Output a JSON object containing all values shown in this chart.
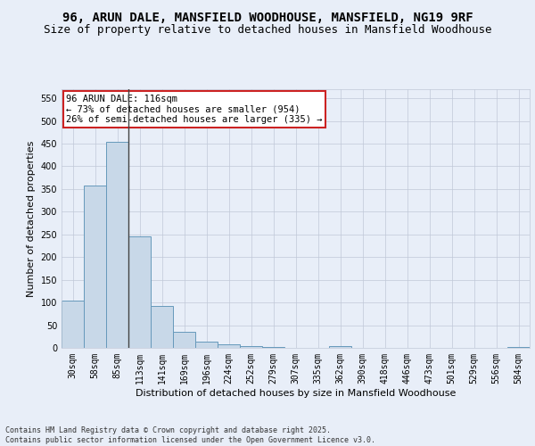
{
  "title": "96, ARUN DALE, MANSFIELD WOODHOUSE, MANSFIELD, NG19 9RF",
  "subtitle": "Size of property relative to detached houses in Mansfield Woodhouse",
  "xlabel": "Distribution of detached houses by size in Mansfield Woodhouse",
  "ylabel": "Number of detached properties",
  "categories": [
    "30sqm",
    "58sqm",
    "85sqm",
    "113sqm",
    "141sqm",
    "169sqm",
    "196sqm",
    "224sqm",
    "252sqm",
    "279sqm",
    "307sqm",
    "335sqm",
    "362sqm",
    "390sqm",
    "418sqm",
    "446sqm",
    "473sqm",
    "501sqm",
    "529sqm",
    "556sqm",
    "584sqm"
  ],
  "values": [
    105,
    357,
    455,
    245,
    92,
    35,
    13,
    7,
    4,
    2,
    0,
    0,
    4,
    0,
    0,
    0,
    0,
    0,
    0,
    0,
    2
  ],
  "bar_color": "#c8d8e8",
  "bar_edge_color": "#6699bb",
  "grid_color": "#c0c8d8",
  "background_color": "#e8eef8",
  "vline_x": 2.5,
  "vline_color": "#444444",
  "annotation_text": "96 ARUN DALE: 116sqm\n← 73% of detached houses are smaller (954)\n26% of semi-detached houses are larger (335) →",
  "annotation_box_color": "#ffffff",
  "annotation_box_edge_color": "#cc2222",
  "footer_text": "Contains HM Land Registry data © Crown copyright and database right 2025.\nContains public sector information licensed under the Open Government Licence v3.0.",
  "ylim": [
    0,
    570
  ],
  "yticks": [
    0,
    50,
    100,
    150,
    200,
    250,
    300,
    350,
    400,
    450,
    500,
    550
  ],
  "title_fontsize": 10,
  "subtitle_fontsize": 9,
  "axis_label_fontsize": 8,
  "tick_fontsize": 7,
  "annotation_fontsize": 7.5,
  "footer_fontsize": 6
}
